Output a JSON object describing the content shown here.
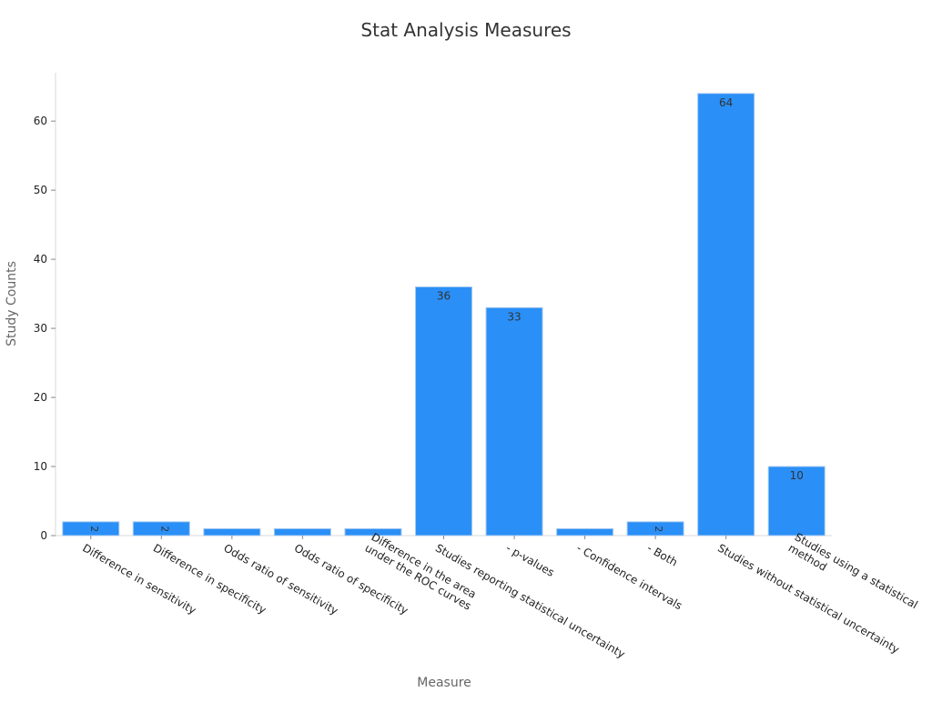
{
  "chart_data": {
    "type": "bar",
    "title": "Stat Analysis Measures",
    "xlabel": "Measure",
    "ylabel": "Study Counts",
    "categories": [
      "Difference in sensitivity",
      "Difference in specificity",
      "Odds ratio of sensitivity",
      "Odds ratio of specificity",
      "Difference in the area\nunder the ROC curves",
      "Studies reporting statistical uncertainty",
      "- p-values",
      "- Confidence intervals",
      "- Both",
      "Studies without statistical uncertainty",
      "Studies using a statistical\nmethod"
    ],
    "values": [
      2,
      2,
      1,
      1,
      1,
      36,
      33,
      1,
      2,
      64,
      10
    ],
    "data_labels": [
      "2",
      "2",
      "",
      "",
      "",
      "36",
      "33",
      "",
      "2",
      "64",
      "10"
    ],
    "ylim": [
      0,
      67
    ],
    "yticks": [
      0,
      10,
      20,
      30,
      40,
      50,
      60
    ],
    "grid": false,
    "bar_color": "#2a8ff7",
    "bar_edge_color": "#a9cbef",
    "label_color": "#333333",
    "axis_title_color": "#666666",
    "tick_color": "#222222"
  }
}
